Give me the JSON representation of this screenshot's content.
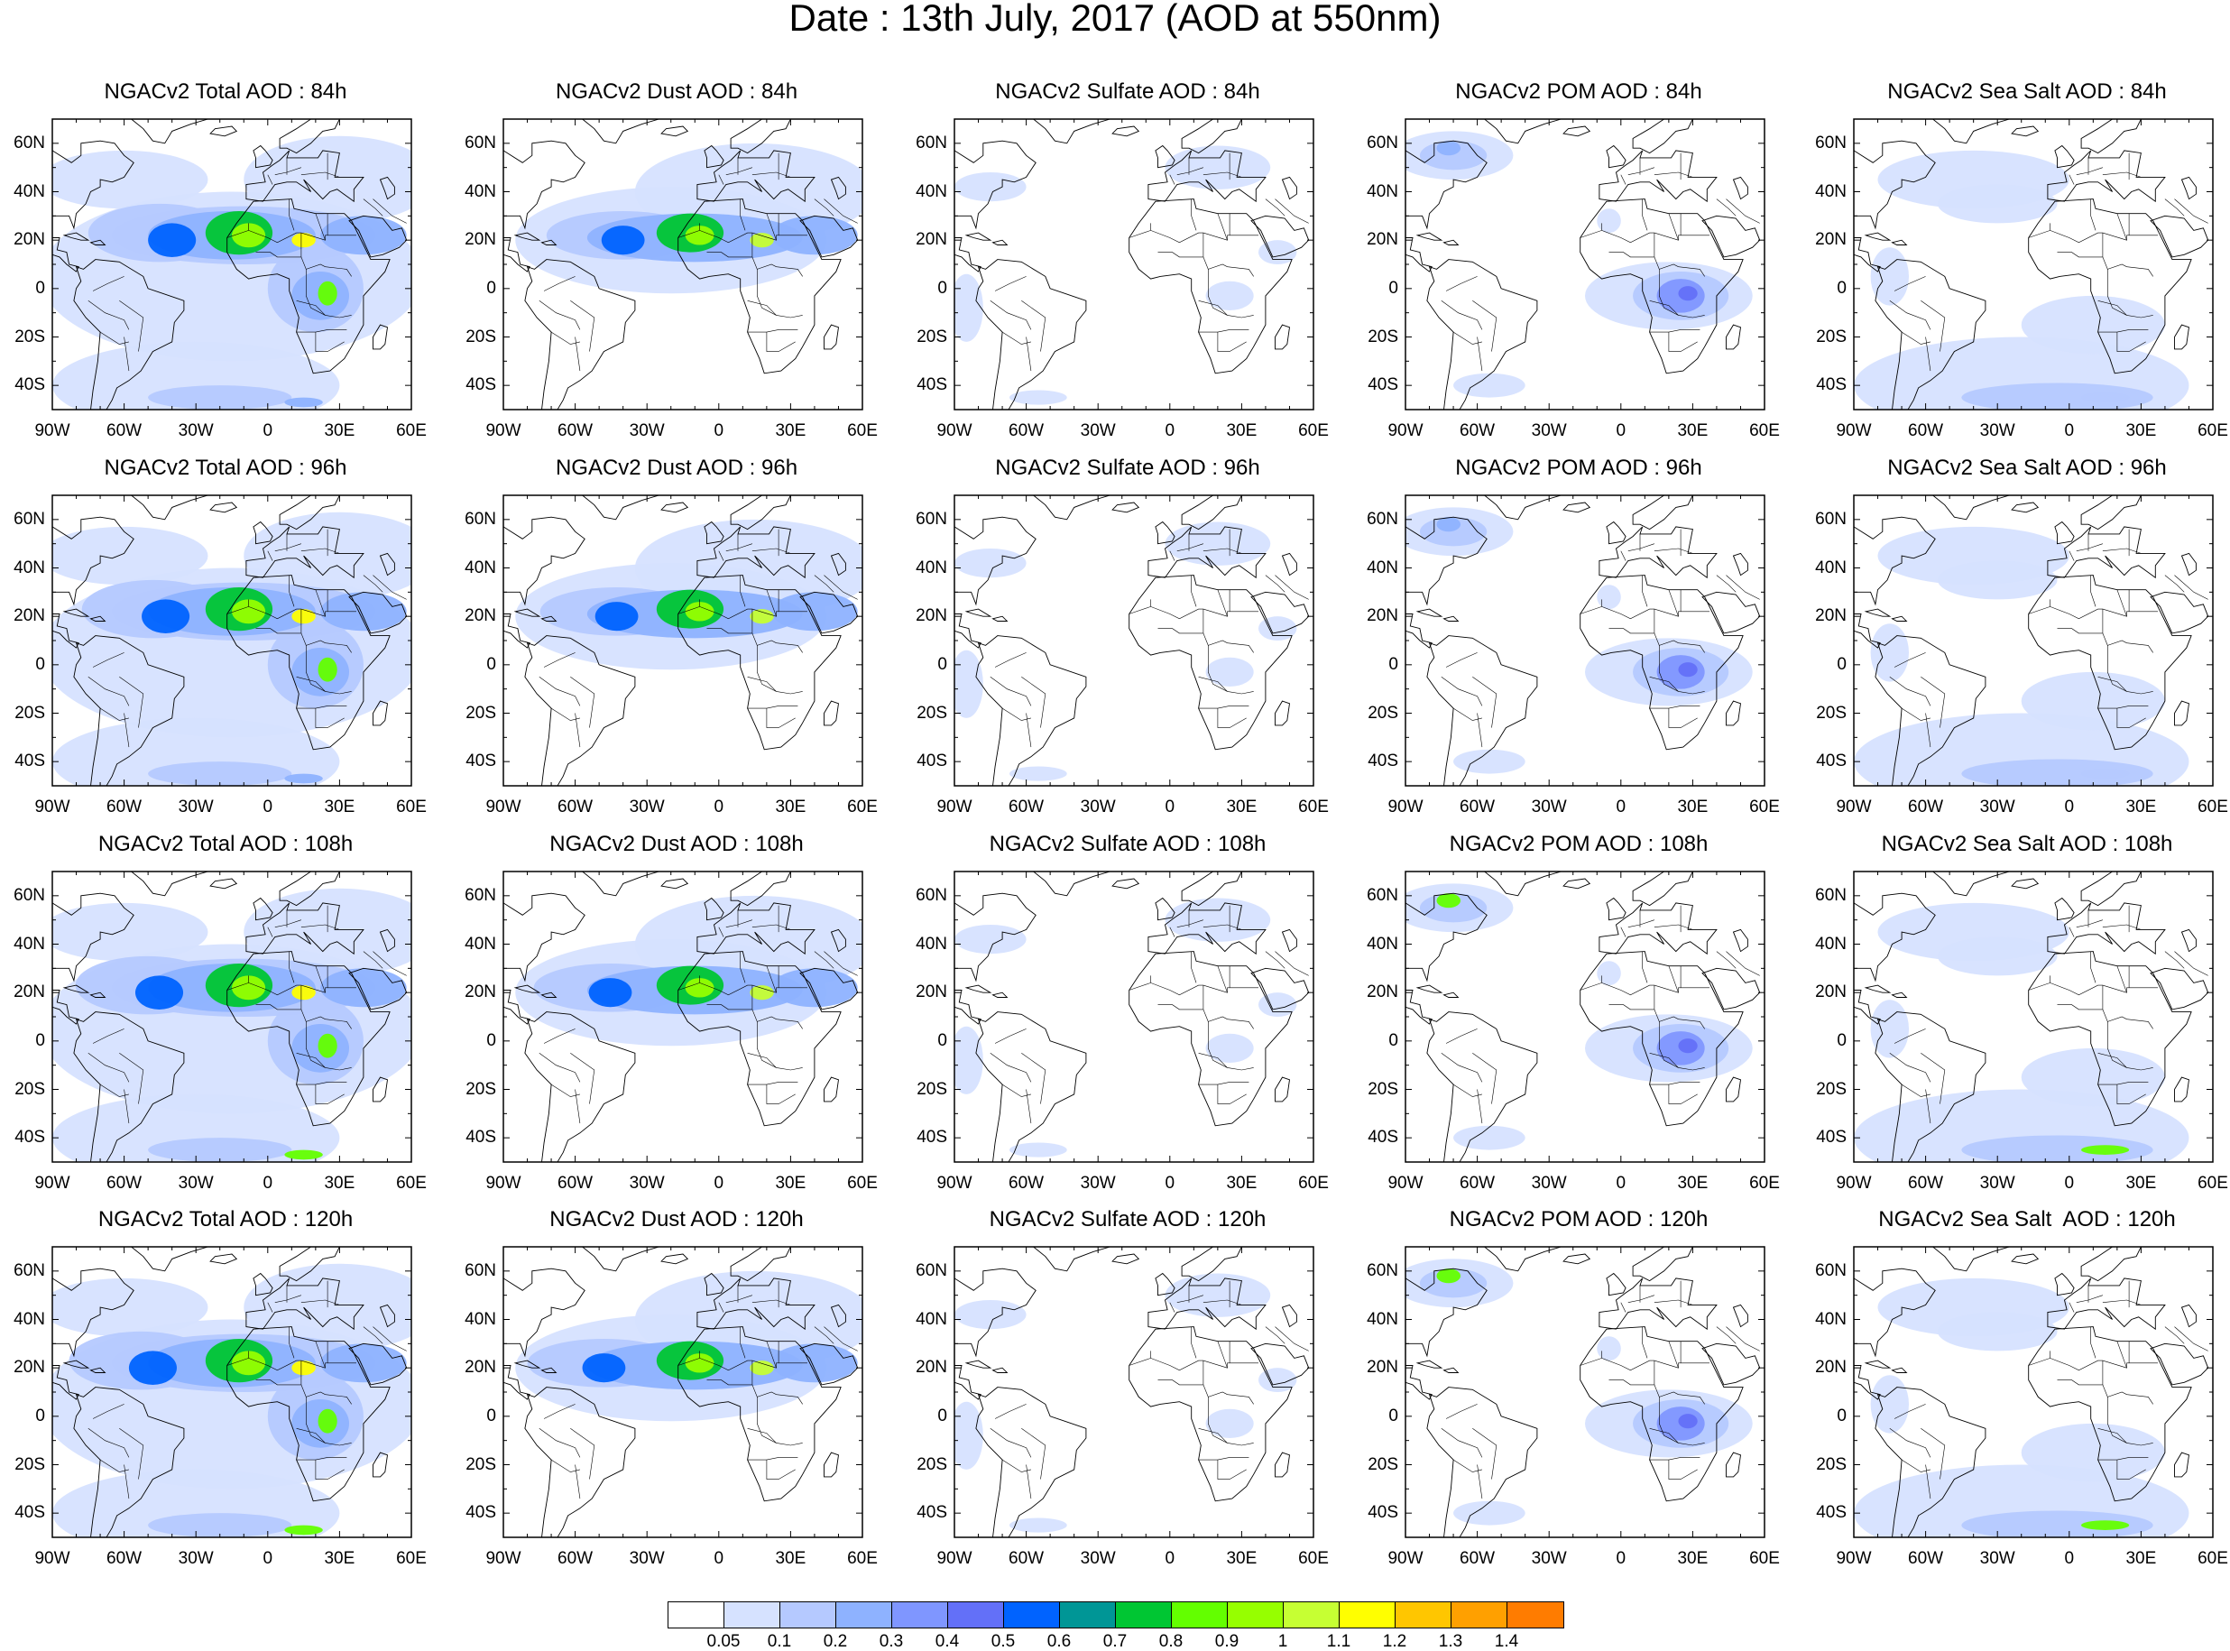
{
  "title": "Date : 13th July, 2017 (AOD at 550nm)",
  "lat_labels": [
    "60N",
    "40N",
    "20N",
    "0",
    "20S",
    "40S"
  ],
  "lon_labels": [
    "90W",
    "60W",
    "30W",
    "0",
    "30E",
    "60E"
  ],
  "panels": [
    {
      "title": "NGACv2 Total AOD : 84h",
      "type": "total",
      "hour": 84
    },
    {
      "title": "NGACv2 Dust AOD : 84h",
      "type": "dust",
      "hour": 84
    },
    {
      "title": "NGACv2 Sulfate AOD : 84h",
      "type": "sulfate",
      "hour": 84
    },
    {
      "title": "NGACv2 POM AOD : 84h",
      "type": "pom",
      "hour": 84
    },
    {
      "title": "NGACv2 Sea Salt AOD : 84h",
      "type": "seasalt",
      "hour": 84
    },
    {
      "title": "NGACv2 Total AOD : 96h",
      "type": "total",
      "hour": 96
    },
    {
      "title": "NGACv2 Dust AOD : 96h",
      "type": "dust",
      "hour": 96
    },
    {
      "title": "NGACv2 Sulfate AOD : 96h",
      "type": "sulfate",
      "hour": 96
    },
    {
      "title": "NGACv2 POM AOD : 96h",
      "type": "pom",
      "hour": 96
    },
    {
      "title": "NGACv2 Sea Salt AOD : 96h",
      "type": "seasalt",
      "hour": 96
    },
    {
      "title": "NGACv2 Total AOD : 108h",
      "type": "total",
      "hour": 108
    },
    {
      "title": "NGACv2 Dust AOD : 108h",
      "type": "dust",
      "hour": 108
    },
    {
      "title": "NGACv2 Sulfate AOD : 108h",
      "type": "sulfate",
      "hour": 108
    },
    {
      "title": "NGACv2 POM AOD : 108h",
      "type": "pom",
      "hour": 108
    },
    {
      "title": "NGACv2 Sea Salt AOD : 108h",
      "type": "seasalt",
      "hour": 108
    },
    {
      "title": "NGACv2 Total AOD : 120h",
      "type": "total",
      "hour": 120
    },
    {
      "title": "NGACv2 Dust AOD : 120h",
      "type": "dust",
      "hour": 120
    },
    {
      "title": "NGACv2 Sulfate AOD : 120h",
      "type": "sulfate",
      "hour": 120
    },
    {
      "title": "NGACv2 POM AOD : 120h",
      "type": "pom",
      "hour": 120
    },
    {
      "title": "NGACv2 Sea Salt  AOD : 120h",
      "type": "seasalt",
      "hour": 120
    }
  ],
  "colorbar": {
    "labels": [
      "0.05",
      "0.1",
      "0.2",
      "0.3",
      "0.4",
      "0.5",
      "0.6",
      "0.7",
      "0.8",
      "0.9",
      "1",
      "1.1",
      "1.2",
      "1.3",
      "1.4"
    ],
    "colors": [
      "#ffffff",
      "#d6e2ff",
      "#b5c9ff",
      "#8eb2ff",
      "#7f96ff",
      "#6370f8",
      "#0063ff",
      "#009696",
      "#00c633",
      "#63ff00",
      "#96ff00",
      "#c6ff33",
      "#ffff00",
      "#ffc600",
      "#ffa000",
      "#ff7c00",
      "#ff1900"
    ]
  }
}
